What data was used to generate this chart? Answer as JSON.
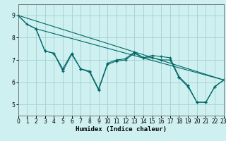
{
  "xlabel": "Humidex (Indice chaleur)",
  "color": "#006666",
  "bg_color": "#cff0f0",
  "grid_color": "#aad4d4",
  "ylim": [
    4.5,
    9.5
  ],
  "xlim": [
    0,
    23
  ],
  "yticks": [
    5,
    6,
    7,
    8,
    9
  ],
  "xticks": [
    0,
    1,
    2,
    3,
    4,
    5,
    6,
    7,
    8,
    9,
    10,
    11,
    12,
    13,
    14,
    15,
    16,
    17,
    18,
    19,
    20,
    21,
    22,
    23
  ],
  "straight_line1_x": [
    0,
    23
  ],
  "straight_line1_y": [
    9.0,
    6.1
  ],
  "straight_line2_x": [
    0,
    1,
    2,
    23
  ],
  "straight_line2_y": [
    9.0,
    8.6,
    8.4,
    6.1
  ],
  "zigzag_x": [
    0,
    1,
    2,
    3,
    4,
    5,
    6,
    7,
    8,
    9,
    10,
    11,
    12,
    13,
    14,
    15,
    16,
    17,
    18,
    19,
    20,
    21,
    22,
    23
  ],
  "zigzag_y": [
    9.0,
    8.6,
    8.4,
    7.4,
    7.3,
    6.6,
    7.3,
    6.6,
    6.5,
    5.7,
    6.85,
    7.0,
    7.05,
    7.35,
    7.1,
    7.2,
    7.15,
    7.1,
    6.25,
    5.85,
    5.1,
    5.1,
    5.8,
    6.1
  ],
  "zigzag2_x": [
    2,
    3,
    4,
    5,
    6,
    7,
    8,
    9,
    10,
    11,
    12,
    13,
    14,
    15,
    16,
    17,
    18,
    19,
    20,
    21,
    22,
    23
  ],
  "zigzag2_y": [
    8.4,
    7.4,
    7.3,
    6.5,
    7.25,
    6.6,
    6.45,
    5.65,
    6.8,
    6.95,
    7.0,
    7.3,
    7.1,
    7.1,
    7.0,
    7.0,
    6.2,
    5.8,
    5.1,
    5.1,
    5.8,
    6.1
  ]
}
